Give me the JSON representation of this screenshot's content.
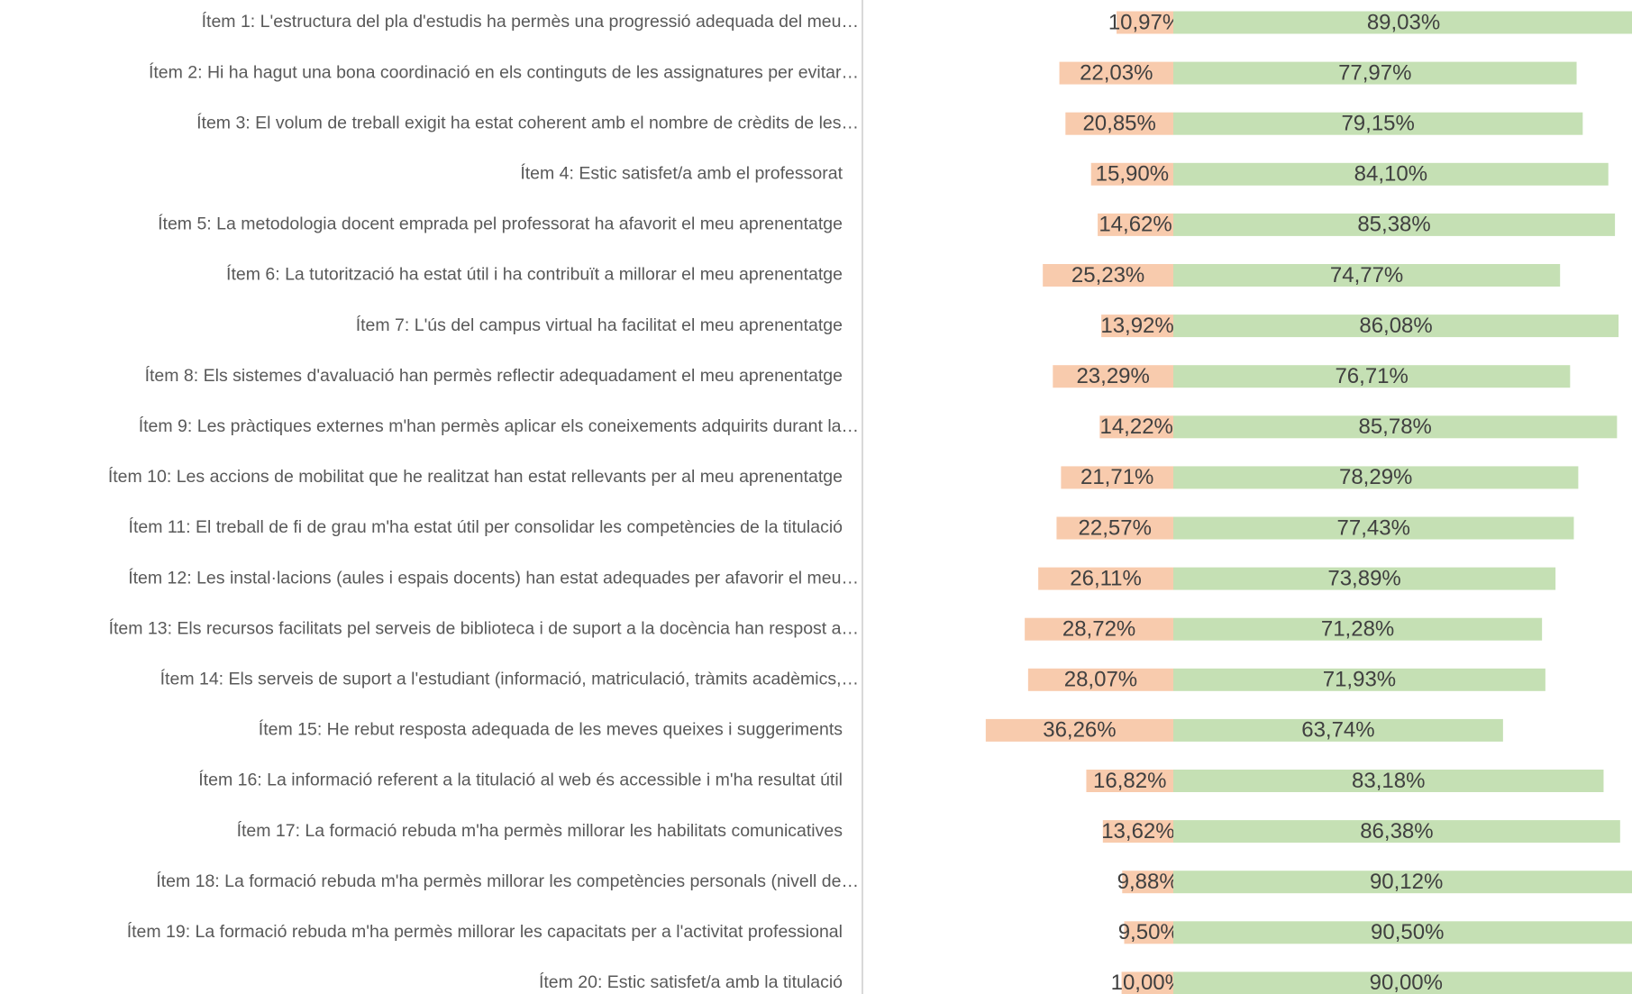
{
  "chart_data": {
    "type": "diverging_bar",
    "categories": [
      "Ítem 1: L'estructura del pla d'estudis ha permès una progressió adequada del meu…",
      "Ítem 2: Hi ha hagut una bona coordinació en els continguts de les assignatures per evitar…",
      "Ítem 3: El volum de treball exigit ha estat coherent amb el nombre de crèdits de les…",
      "Ítem 4: Estic satisfet/a amb el professorat",
      "Ítem 5: La metodologia docent emprada pel professorat ha afavorit el meu aprenentatge",
      "Ítem 6: La tutorització ha estat útil i ha contribuït a millorar el meu aprenentatge",
      "Ítem 7: L'ús del campus virtual ha facilitat el meu aprenentatge",
      "Ítem 8: Els sistemes d'avaluació han permès reflectir adequadament el meu aprenentatge",
      "Ítem 9: Les pràctiques externes m'han permès aplicar els coneixements adquirits durant la…",
      "Ítem 10: Les accions de mobilitat que he realitzat han estat rellevants per al meu aprenentatge",
      "Ítem 11: El treball de fi de grau m'ha estat útil per consolidar les competències de la titulació",
      "Ítem 12: Les instal·lacions (aules i espais docents) han estat adequades per afavorir el meu…",
      "Ítem 13: Els recursos facilitats pel serveis de biblioteca i de suport a la docència han respost a…",
      "Ítem 14: Els serveis de suport a l'estudiant (informació, matriculació, tràmits acadèmics,…",
      "Ítem 15: He rebut resposta adequada de les meves queixes i suggeriments",
      "Ítem 16: La informació referent a la titulació al web és accessible i m'ha resultat útil",
      "Ítem 17: La formació rebuda m'ha permès millorar les habilitats comunicatives",
      "Ítem 18: La formació rebuda m'ha permès millorar les competències personals (nivell de…",
      "Ítem 19: La formació rebuda m'ha permès millorar les capacitats per a l'activitat professional",
      "Ítem 20: Estic satisfet/a amb la titulació"
    ],
    "series": [
      {
        "color": "#f8cbad",
        "values": [
          10.97,
          22.03,
          20.85,
          15.9,
          14.62,
          25.23,
          13.92,
          23.29,
          14.22,
          21.71,
          22.57,
          26.11,
          28.72,
          28.07,
          36.26,
          16.82,
          13.62,
          9.88,
          9.5,
          10.0
        ],
        "value_labels": [
          "10,97%",
          "22,03%",
          "20,85%",
          "15,90%",
          "14,62%",
          "25,23%",
          "13,92%",
          "23,29%",
          "14,22%",
          "21,71%",
          "22,57%",
          "26,11%",
          "28,72%",
          "28,07%",
          "36,26%",
          "16,82%",
          "13,62%",
          "9,88%",
          "9,50%",
          "10,00%"
        ]
      },
      {
        "color": "#c5e0b4",
        "values": [
          89.03,
          77.97,
          79.15,
          84.1,
          85.38,
          74.77,
          86.08,
          76.71,
          85.78,
          78.29,
          77.43,
          73.89,
          71.28,
          71.93,
          63.74,
          83.18,
          86.38,
          90.12,
          90.5,
          90.0
        ],
        "value_labels": [
          "89,03%",
          "77,97%",
          "79,15%",
          "84,10%",
          "85,38%",
          "74,77%",
          "86,08%",
          "76,71%",
          "85,78%",
          "78,29%",
          "77,43%",
          "73,89%",
          "71,28%",
          "71,93%",
          "63,74%",
          "83,18%",
          "86,38%",
          "90,12%",
          "90,50%",
          "90,00%"
        ]
      }
    ]
  }
}
